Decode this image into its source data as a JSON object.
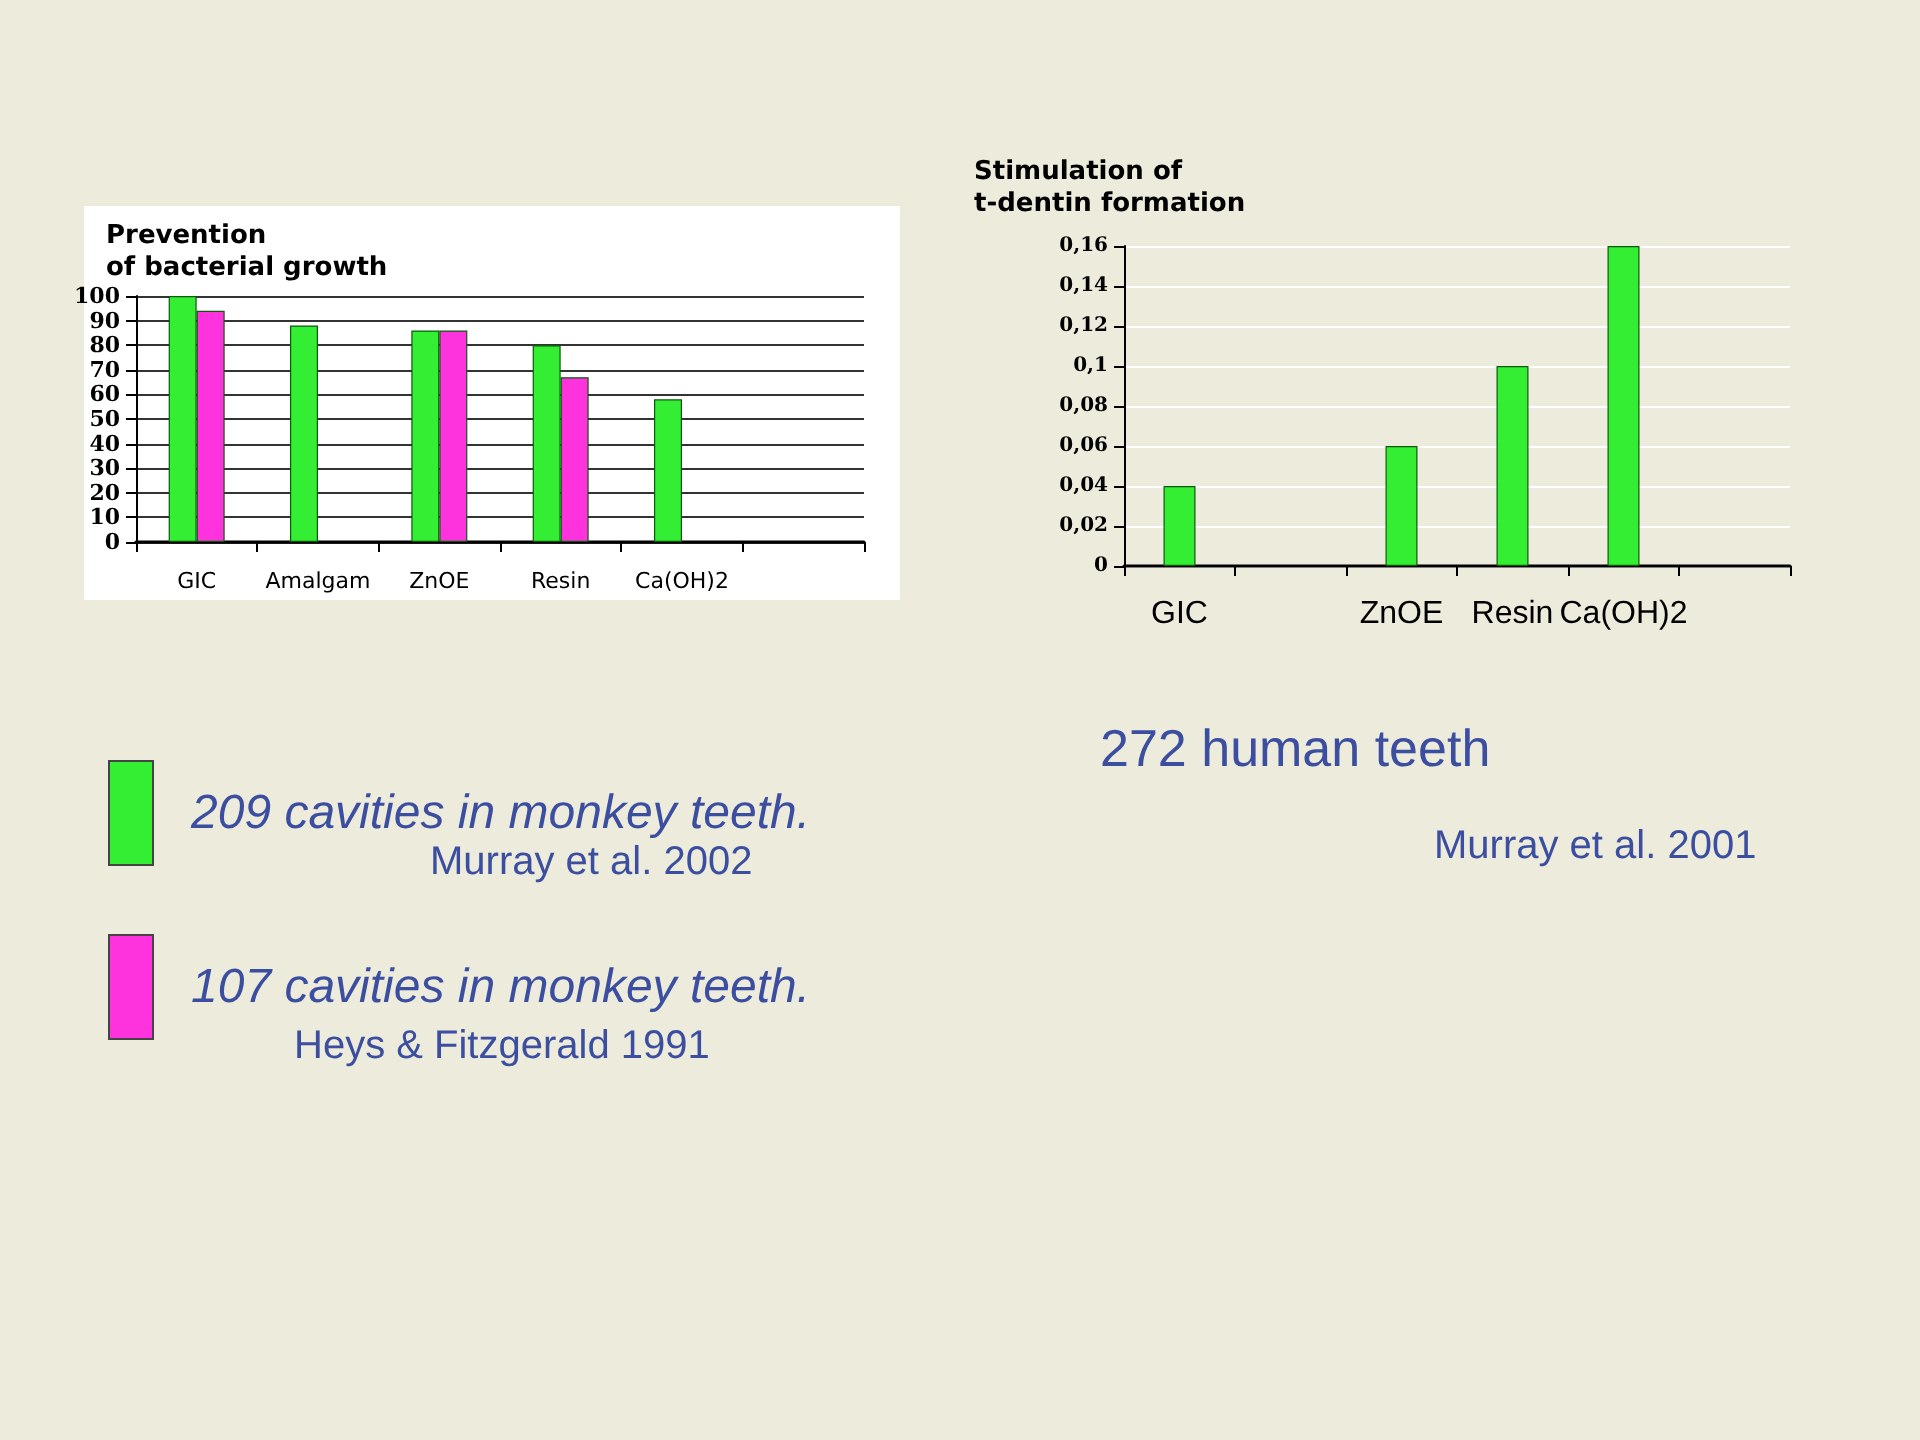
{
  "chart_data": [
    {
      "type": "bar",
      "title": "Prevention\nof bacterial growth",
      "categories": [
        "GIC",
        "Amalgam",
        "ZnOE",
        "Resin",
        "Ca(OH)2",
        null
      ],
      "series": [
        {
          "name": "209 cavities in monkey teeth.",
          "color": "#33ee33",
          "values": [
            100,
            88,
            86,
            80,
            58,
            null
          ]
        },
        {
          "name": "107 cavities in monkey teeth.",
          "color": "#ff33dd",
          "values": [
            94,
            null,
            86,
            67,
            null,
            null
          ]
        }
      ],
      "ylim": [
        0,
        100
      ],
      "yticks": [
        0,
        10,
        20,
        30,
        40,
        50,
        60,
        70,
        80,
        90,
        100
      ],
      "grid": "y",
      "legend": "bottom left",
      "annotations": [
        "Murray et al. 2002",
        "Heys & Fitzgerald 1991"
      ]
    },
    {
      "type": "bar",
      "title": "Stimulation of\nt-dentin formation",
      "categories": [
        "GIC",
        null,
        "ZnOE",
        "Resin",
        "Ca(OH)2",
        null
      ],
      "series": [
        {
          "color": "#33ee33",
          "values": [
            0.04,
            null,
            0.06,
            0.1,
            0.16,
            null
          ]
        }
      ],
      "ylim": [
        0,
        0.16
      ],
      "yticks": [
        0,
        {
          "value": 0.02,
          "label": "0,02"
        },
        {
          "value": 0.04,
          "label": "0,04"
        },
        {
          "value": 0.06,
          "label": "0,06"
        },
        {
          "value": 0.08,
          "label": "0,08"
        },
        {
          "value": 0.1,
          "label": "0,1"
        },
        {
          "value": 0.12,
          "label": "0,12"
        },
        {
          "value": 0.14,
          "label": "0,14"
        },
        {
          "value": 0.16,
          "label": "0,16"
        }
      ],
      "grid": "y",
      "annotations": [
        "272 human teeth",
        "Murray et al. 2001"
      ]
    }
  ]
}
